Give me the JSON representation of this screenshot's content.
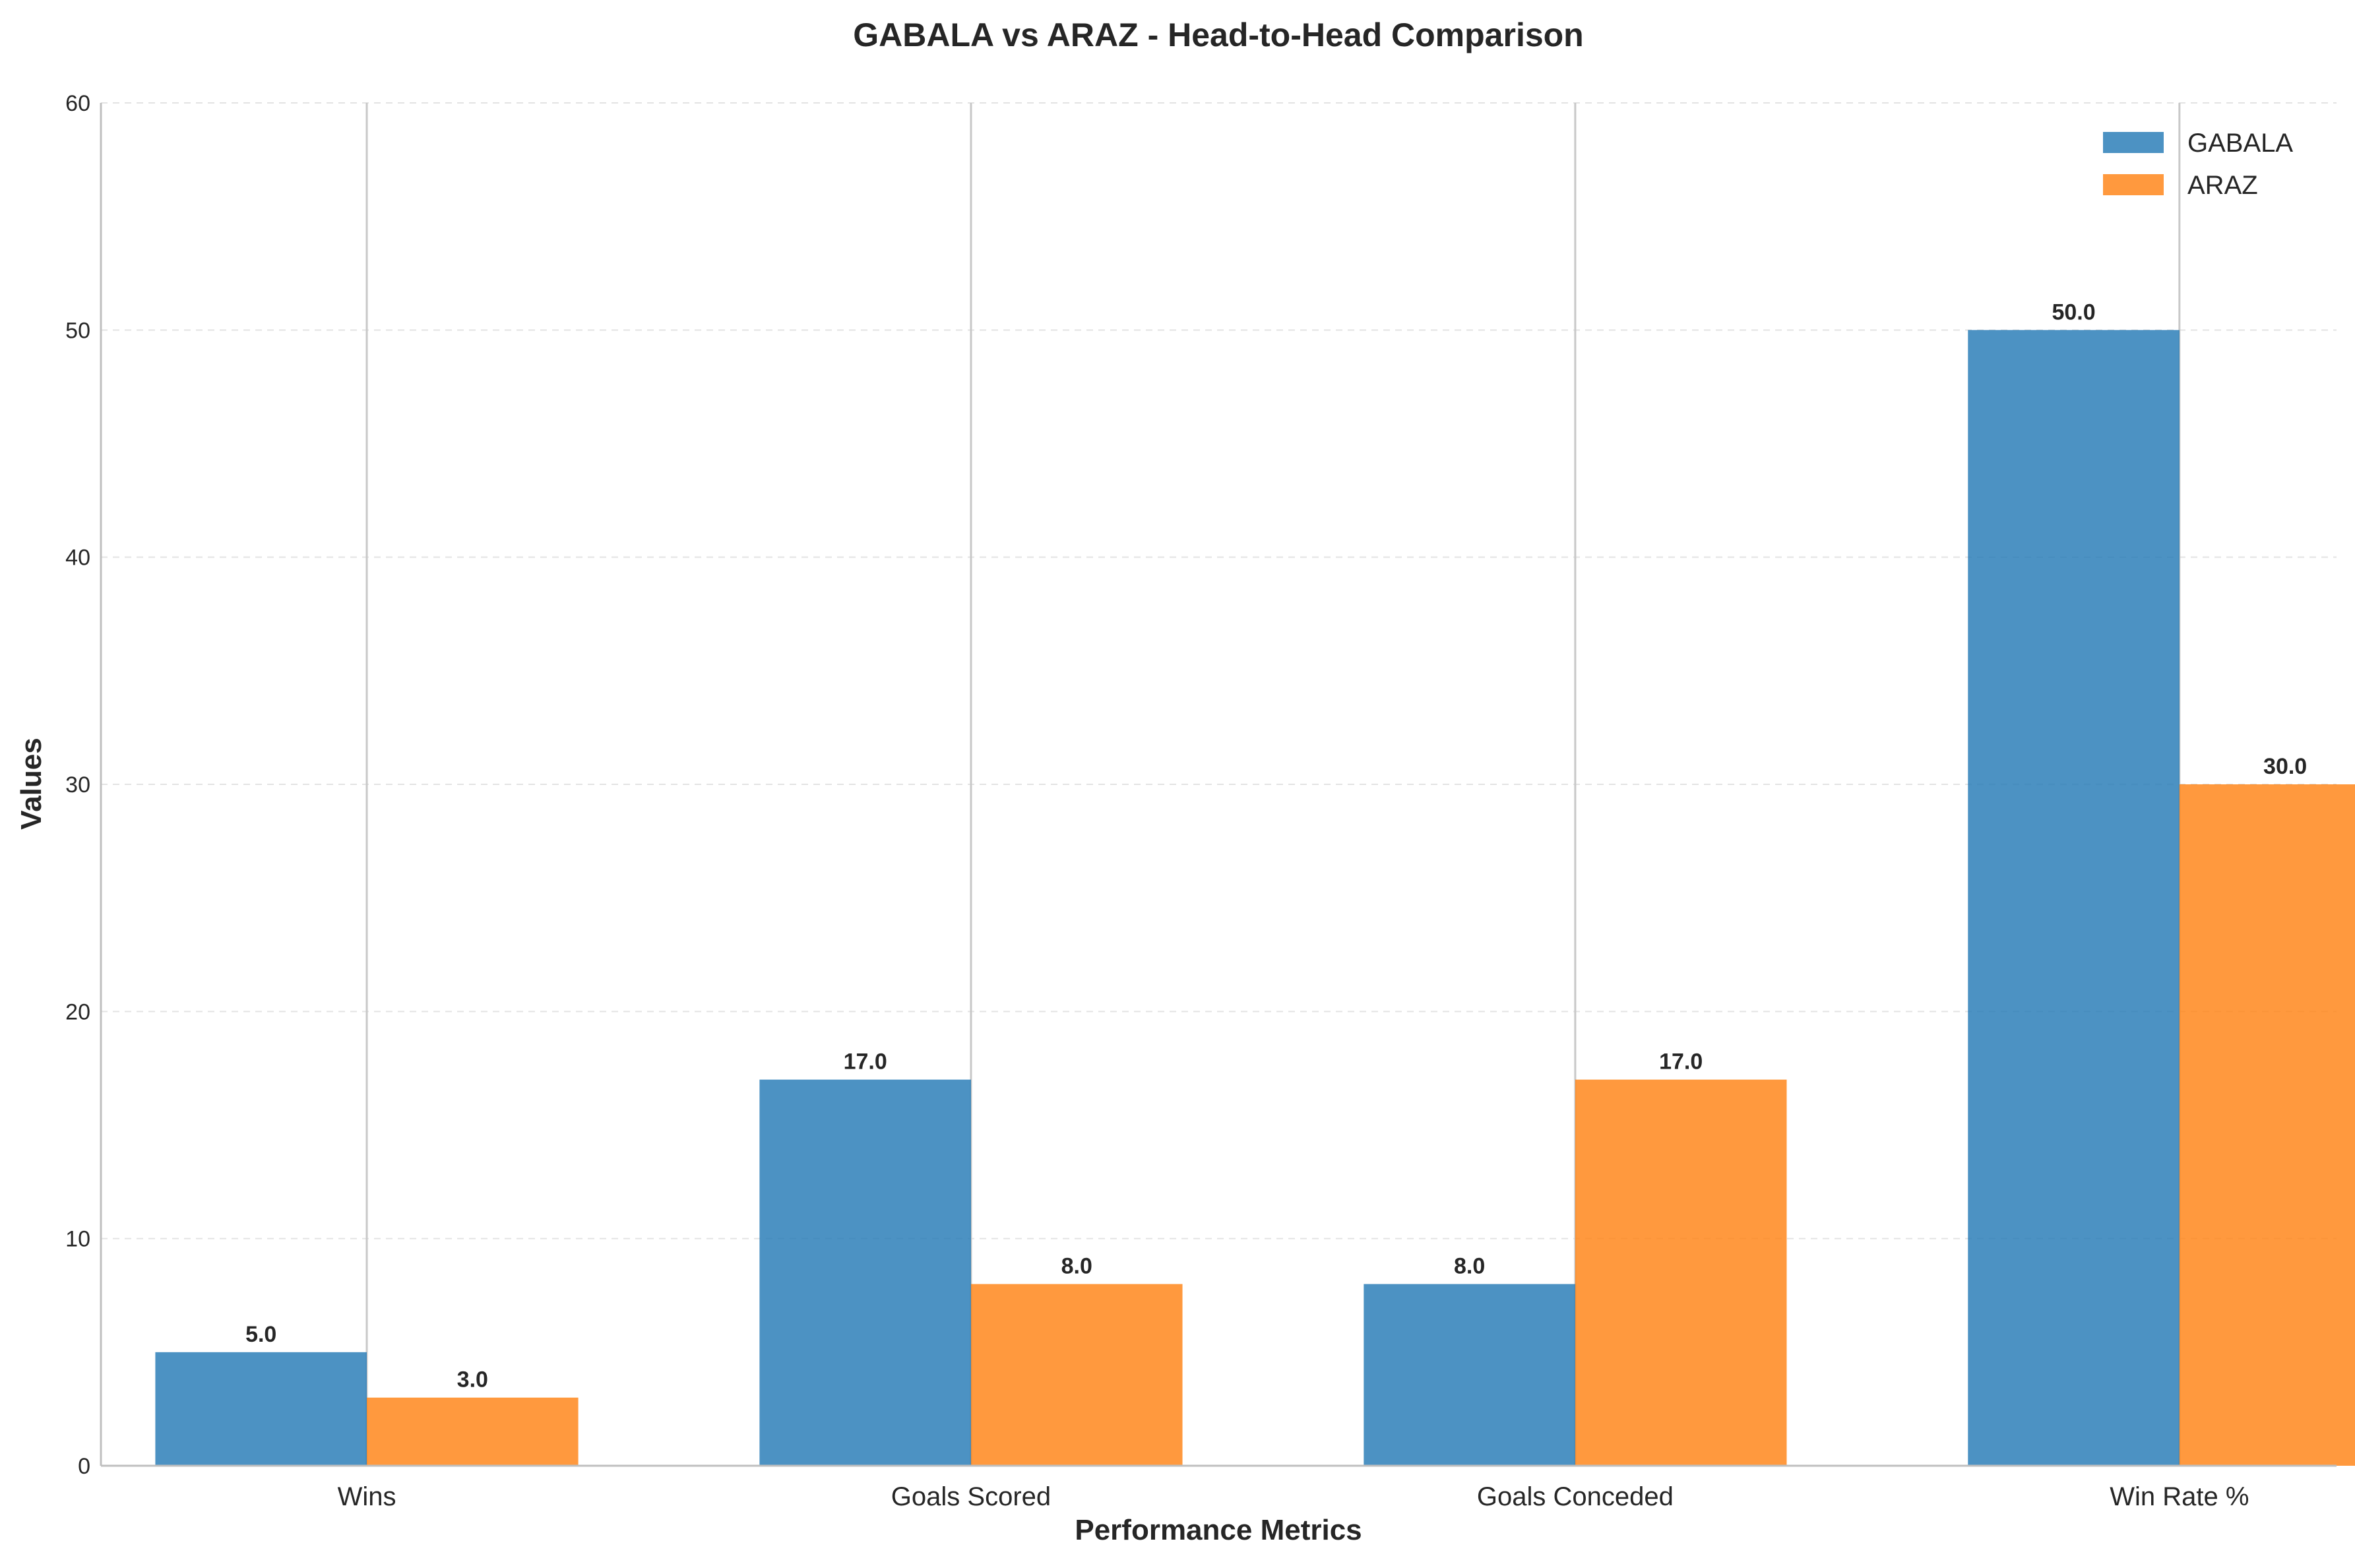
{
  "chart_data": {
    "type": "bar",
    "title": "GABALA vs ARAZ - Head-to-Head Comparison",
    "xlabel": "Performance Metrics",
    "ylabel": "Values",
    "categories": [
      "Wins",
      "Goals Scored",
      "Goals Conceded",
      "Win Rate %"
    ],
    "series": [
      {
        "name": "GABALA",
        "values": [
          5.0,
          17.0,
          8.0,
          50.0
        ],
        "color": "#1f77b4"
      },
      {
        "name": "ARAZ",
        "values": [
          3.0,
          8.0,
          17.0,
          30.0
        ],
        "color": "#ff7f0e"
      }
    ],
    "ylim": [
      0,
      60
    ],
    "yticks": [
      0,
      10,
      20,
      30,
      40,
      50,
      60
    ],
    "value_labels": [
      [
        "5.0",
        "17.0",
        "8.0",
        "50.0"
      ],
      [
        "3.0",
        "8.0",
        "17.0",
        "30.0"
      ]
    ],
    "grid": "y-dashed",
    "legend_position": "top-right"
  }
}
